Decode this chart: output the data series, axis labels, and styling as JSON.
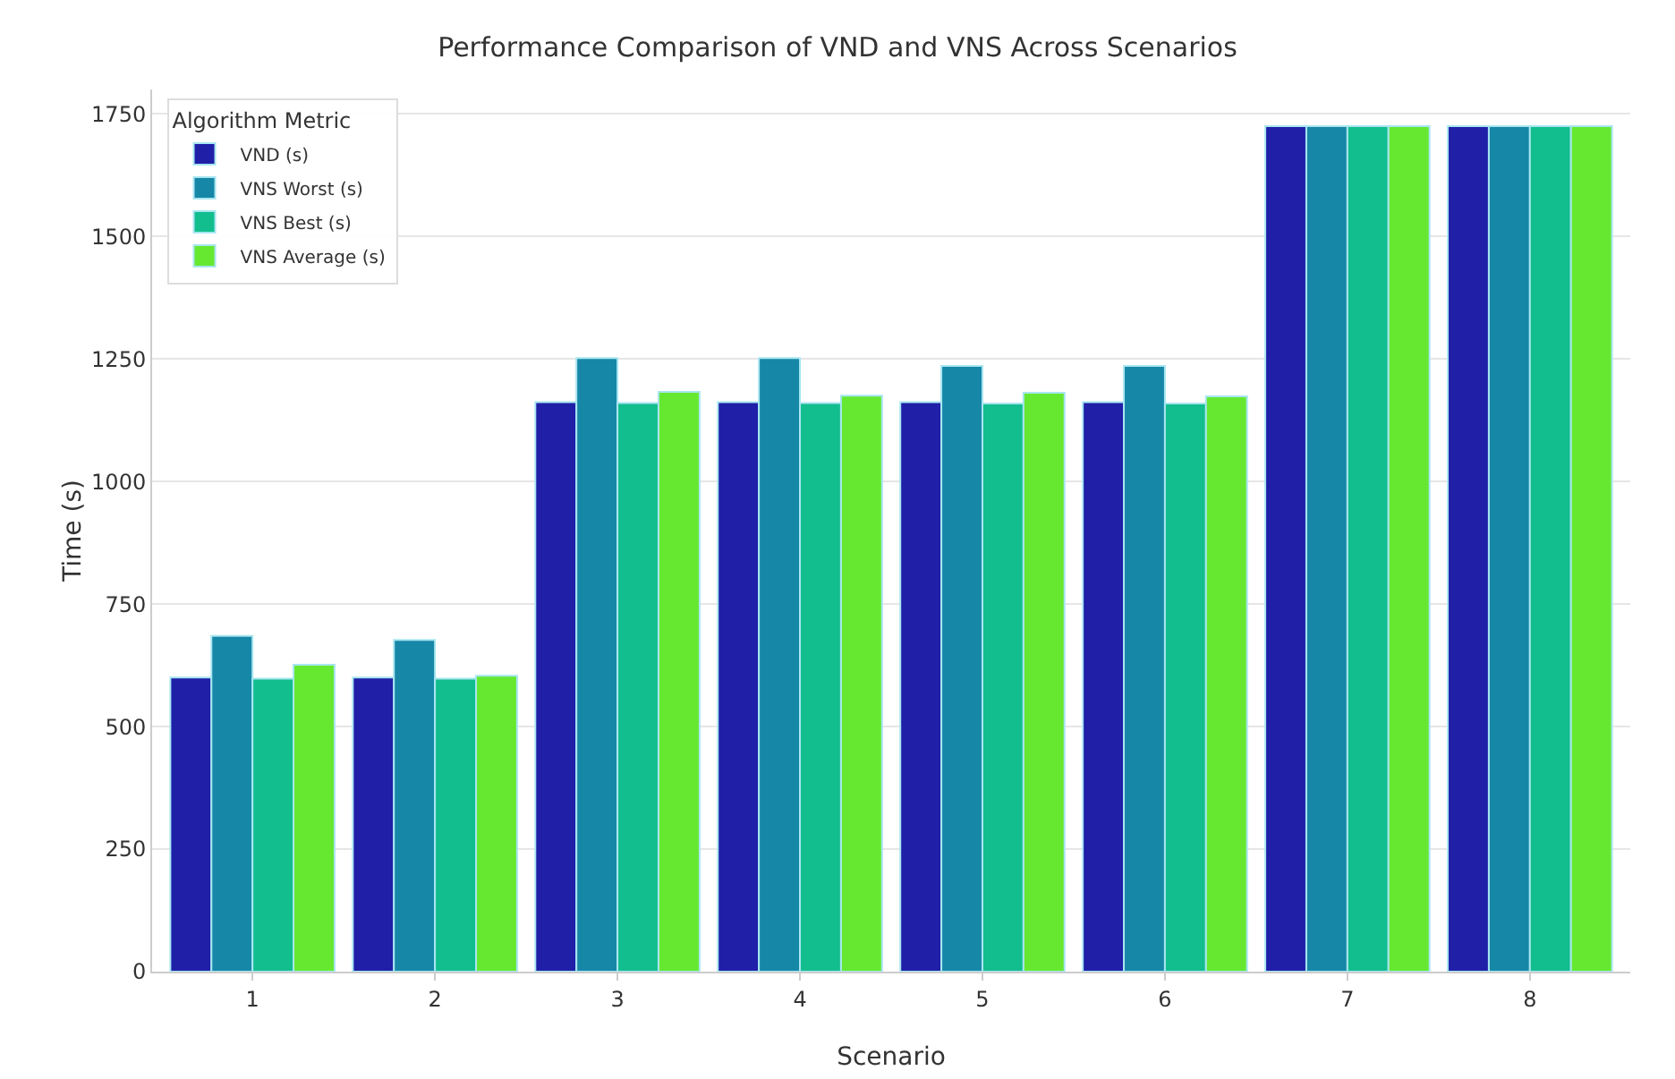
{
  "chart_data": {
    "type": "bar",
    "title": "Performance Comparison of VND and VNS Across Scenarios",
    "xlabel": "Scenario",
    "ylabel": "Time (s)",
    "legend_title": "Algorithm Metric",
    "categories": [
      "1",
      "2",
      "3",
      "4",
      "5",
      "6",
      "7",
      "8"
    ],
    "series": [
      {
        "name": "VND (s)",
        "color": "#1f1fa8",
        "values": [
          600,
          600,
          1162,
          1162,
          1162,
          1162,
          1725,
          1725
        ]
      },
      {
        "name": "VNS Worst (s)",
        "color": "#1787a8",
        "values": [
          685,
          677,
          1252,
          1252,
          1236,
          1236,
          1725,
          1725
        ]
      },
      {
        "name": "VNS Best (s)",
        "color": "#12bd8e",
        "values": [
          598,
          598,
          1160,
          1160,
          1159,
          1159,
          1725,
          1725
        ]
      },
      {
        "name": "VNS Average (s)",
        "color": "#66e830",
        "values": [
          626,
          604,
          1183,
          1175,
          1181,
          1174,
          1725,
          1725
        ]
      }
    ],
    "ylim": [
      0,
      1800
    ],
    "yticks": [
      0,
      250,
      500,
      750,
      1000,
      1250,
      1500,
      1750
    ],
    "grid": "y",
    "legend": "top left"
  }
}
